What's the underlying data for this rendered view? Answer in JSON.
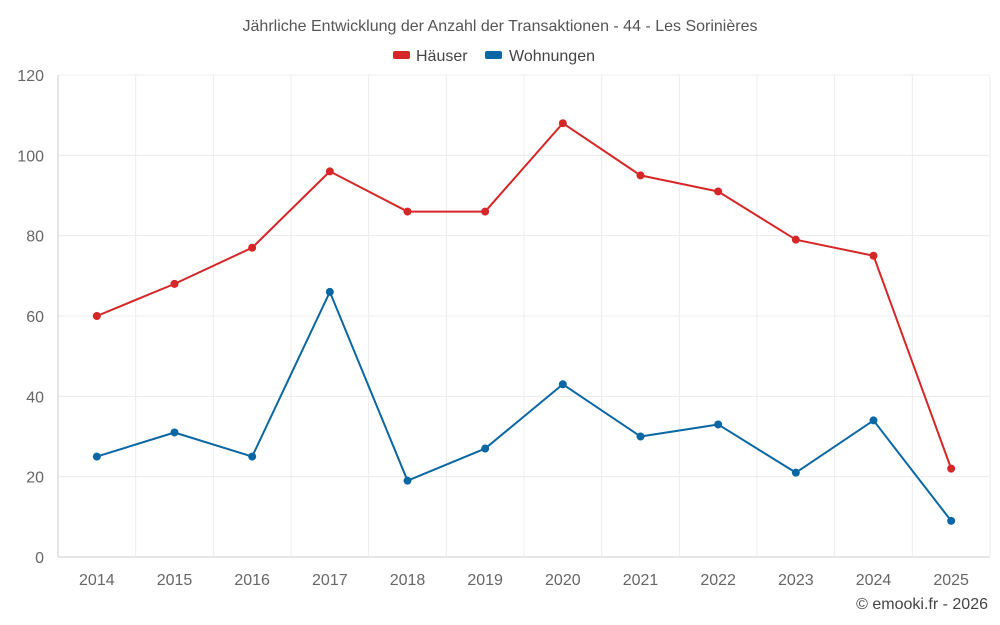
{
  "chart_data": {
    "type": "line",
    "title": "Jährliche Entwicklung der Anzahl der Transaktionen - 44 - Les Sorinières",
    "categories": [
      "2014",
      "2015",
      "2016",
      "2017",
      "2018",
      "2019",
      "2020",
      "2021",
      "2022",
      "2023",
      "2024",
      "2025"
    ],
    "series": [
      {
        "name": "Häuser",
        "color": "#d62728",
        "values": [
          60,
          68,
          77,
          96,
          86,
          86,
          108,
          95,
          91,
          79,
          75,
          22
        ]
      },
      {
        "name": "Wohnungen",
        "color": "#0a67a3",
        "values": [
          25,
          31,
          25,
          66,
          19,
          27,
          43,
          30,
          33,
          21,
          34,
          9
        ]
      }
    ],
    "ylim": [
      0,
      120
    ],
    "yticks": [
      0,
      20,
      40,
      60,
      80,
      100,
      120
    ],
    "grid": true,
    "legend": "top-center",
    "xlabel": "",
    "ylabel": ""
  },
  "credit": "© emooki.fr - 2026"
}
